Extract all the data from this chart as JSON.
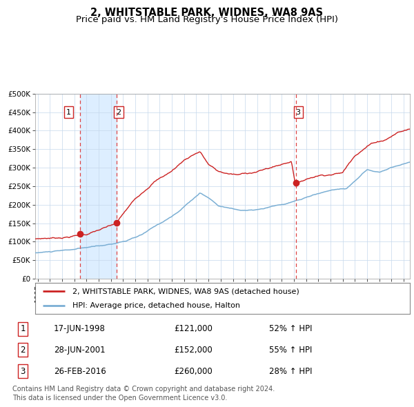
{
  "title": "2, WHITSTABLE PARK, WIDNES, WA8 9AS",
  "subtitle": "Price paid vs. HM Land Registry's House Price Index (HPI)",
  "ylabel_ticks": [
    "£0",
    "£50K",
    "£100K",
    "£150K",
    "£200K",
    "£250K",
    "£300K",
    "£350K",
    "£400K",
    "£450K",
    "£500K"
  ],
  "ytick_values": [
    0,
    50000,
    100000,
    150000,
    200000,
    250000,
    300000,
    350000,
    400000,
    450000,
    500000
  ],
  "ylim": [
    0,
    500000
  ],
  "xlim_start": 1994.8,
  "xlim_end": 2025.5,
  "sale_dates": [
    1998.46,
    2001.49,
    2016.15
  ],
  "sale_prices": [
    121000,
    152000,
    260000
  ],
  "sale_labels": [
    "1",
    "2",
    "3"
  ],
  "hpi_color": "#7bafd4",
  "property_color": "#cc2222",
  "sale_marker_color": "#cc2222",
  "dashed_line_color": "#dd4444",
  "shade_color": "#ddeeff",
  "grid_color": "#c5d8ec",
  "background_color": "#ffffff",
  "legend_line1": "2, WHITSTABLE PARK, WIDNES, WA8 9AS (detached house)",
  "legend_line2": "HPI: Average price, detached house, Halton",
  "table_rows": [
    [
      "1",
      "17-JUN-1998",
      "£121,000",
      "52% ↑ HPI"
    ],
    [
      "2",
      "28-JUN-2001",
      "£152,000",
      "55% ↑ HPI"
    ],
    [
      "3",
      "26-FEB-2016",
      "£260,000",
      "28% ↑ HPI"
    ]
  ],
  "footer": "Contains HM Land Registry data © Crown copyright and database right 2024.\nThis data is licensed under the Open Government Licence v3.0.",
  "title_fontsize": 10.5,
  "subtitle_fontsize": 9.5,
  "tick_fontsize": 7.5,
  "legend_fontsize": 8,
  "table_fontsize": 8.5,
  "footer_fontsize": 7
}
